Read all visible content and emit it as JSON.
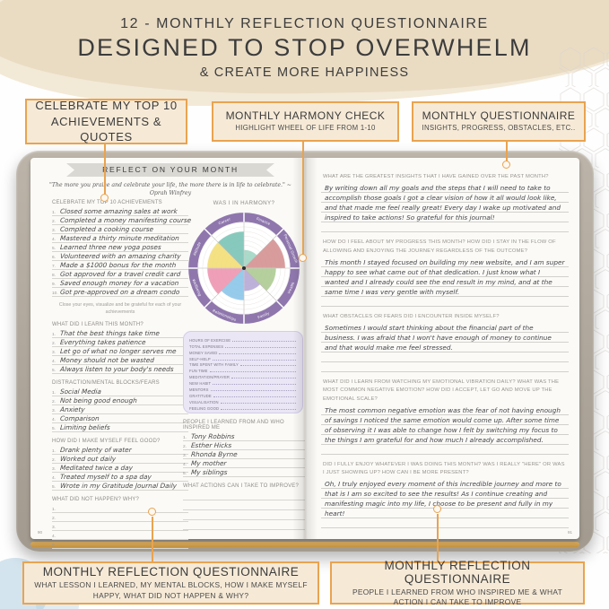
{
  "title": {
    "line1": "12 - MONTHLY REFLECTION QUESTIONNAIRE",
    "line2": "DESIGNED TO STOP OVERWHELM",
    "line3": "& CREATE MORE HAPPINESS"
  },
  "colors": {
    "accent_orange": "#E9A350",
    "callout_bg": "#F6EAD7",
    "wheel_ring_purple": "#8F77AD",
    "stats_box_lavender": "#EAE6F5"
  },
  "callouts": {
    "top_left": {
      "label": "CELEBRATE MY TOP 10 ACHIEVEMENTS & QUOTES"
    },
    "top_middle": {
      "title": "MONTHLY HARMONY CHECK",
      "subtitle": "HIGHLIGHT WHEEL OF LIFE FROM 1-10"
    },
    "top_right": {
      "title": "MONTHLY QUESTIONNAIRE",
      "subtitle": "INSIGHTS, PROGRESS, OBSTACLES, ETC.."
    },
    "bottom_left": {
      "title": "MONTHLY REFLECTION QUESTIONNAIRE",
      "subtitle": "WHAT LESSON I LEARNED, MY MENTAL BLOCKS, HOW I MAKE MYSELF HAPPY, WHAT DID NOT HAPPEN & WHY?"
    },
    "bottom_right": {
      "title": "MONTHLY REFLECTION QUESTIONNAIRE",
      "subtitle": "PEOPLE I LEARNED FROM WHO INSPIRED ME & WHAT ACTION I CAN TAKE TO IMPROVE"
    }
  },
  "left_page": {
    "banner": "REFLECT ON YOUR MONTH",
    "quote": "\"The more you praise and celebrate your life, the more there is in life to celebrate.\" ~ Oprah Winfrey",
    "achievements": {
      "heading": "CELEBRATE MY TOP 10 ACHIEVEMENTS",
      "items": [
        "Closed some amazing sales at work",
        "Completed a money manifesting course",
        "Completed a cooking course",
        "Mastered a thirty minute meditation",
        "Learned three new yoga poses",
        "Volunteered with an amazing charity",
        "Made a $1000 bonus for the month",
        "Got approved for a travel credit card",
        "Saved enough money for a vacation",
        "Got pre-approved on a dream condo"
      ],
      "note": "Close your eyes, visualize and be grateful for each of your achievements"
    },
    "learn": {
      "heading": "WHAT DID I LEARN THIS MONTH?",
      "items": [
        "That the best things take time",
        "Everything takes patience",
        "Let go of what no longer serves me",
        "Money should not be wasted",
        "Always listen to your body's needs"
      ]
    },
    "blocks": {
      "heading": "DISTRACTION/MENTAL BLOCKS/FEARS",
      "items": [
        "Social Media",
        "Not being good enough",
        "Anxiety",
        "Comparison",
        "Limiting beliefs"
      ]
    },
    "feel_good": {
      "heading": "HOW DID I MAKE MYSELF FEEL GOOD?",
      "items": [
        "Drank plenty of water",
        "Worked out daily",
        "Meditated twice a day",
        "Treated myself to a spa day",
        "Wrote in my Gratitude Journal Daily"
      ]
    },
    "not_happen": {
      "heading": "WHAT DID NOT HAPPEN? WHY?",
      "items": [
        "",
        "",
        "",
        "",
        ""
      ]
    },
    "wheel": {
      "title": "WAS I IN HARMONY?",
      "scale": "1-10",
      "ring_color": "#8F77AD",
      "segments": [
        {
          "label": "Finance",
          "color": "#9bd4c0",
          "score": 4
        },
        {
          "label": "Personal Growth",
          "color": "#d28b8b",
          "score": 9
        },
        {
          "label": "Health",
          "color": "#a8c88c",
          "score": 7
        },
        {
          "label": "Family",
          "color": "#b2a3d3",
          "score": 5
        },
        {
          "label": "Relationships",
          "color": "#84c2e8",
          "score": 7
        },
        {
          "label": "Wellbeing",
          "color": "#ec8fab",
          "score": 8
        },
        {
          "label": "Attitude",
          "color": "#f1dc6d",
          "score": 8
        },
        {
          "label": "Career",
          "color": "#72c1b1",
          "score": 8
        }
      ]
    },
    "stats_box": {
      "rows": [
        "HOURS OF EXERCISE",
        "TOTAL EXPENSES",
        "MONEY SAVED",
        "SELF-HELP",
        "TIME SPENT WITH FAMILY",
        "FUN TIME",
        "MEDITATION/PRAYER",
        "NEW HABIT",
        "MENTORS",
        "GRATITUDE",
        "VISUALISATION",
        "FEELING GOOD"
      ]
    },
    "people": {
      "heading": "PEOPLE I LEARNED FROM AND WHO INSPIRED ME",
      "items": [
        "Tony Robbins",
        "Esther Hicks",
        "Rhonda Byrne",
        "My mother",
        "My siblings"
      ]
    },
    "actions": {
      "heading": "WHAT ACTIONS CAN I TAKE TO IMPROVE?",
      "blank_lines": [
        "",
        "",
        "",
        ""
      ]
    },
    "page_number": "90"
  },
  "right_page": {
    "questions": [
      {
        "q": "WHAT ARE THE GREATEST INSIGHTS THAT I HAVE GAINED OVER THE PAST MONTH?",
        "a": "By writing down all my goals and the steps that I will need to take to accomplish those goals I got a clear vision of how it all would look like, and that made me feel really great! Every day I wake up motivated and inspired to take actions! So grateful for this journal!",
        "lines": 5
      },
      {
        "q": "HOW DO I FEEL ABOUT MY PROGRESS THIS MONTH? HOW DID I STAY IN THE FLOW OF ALLOWING AND ENJOYING THE JOURNEY REGARDLESS OF THE OUTCOME?",
        "a": "This month I stayed focused on building my new website, and I am super happy to see what came out of that dedication. I just know what I wanted and I already could see the end result in my mind, and at the same time I was very gentle with myself.",
        "lines": 5
      },
      {
        "q": "WHAT OBSTACLES OR FEARS DID I ENCOUNTER INSIDE MYSELF?",
        "a": "Sometimes I would start thinking about the financial part of the business. I was afraid that I won't have enough of money to continue and that would make me feel stressed.",
        "lines": 5
      },
      {
        "q": "WHAT DID I LEARN FROM WATCHING MY EMOTIONAL VIBRATION DAILY? WHAT WAS THE MOST COMMON NEGATIVE EMOTION? HOW DID I ACCEPT, LET GO AND MOVE UP THE EMOTIONAL SCALE?",
        "a": "The most common negative emotion was the fear of not having enough of savings I noticed the same emotion would come up. After some time of observing it I was able to change how I felt by switching my focus to the things I am grateful for and how much I already accomplished.",
        "lines": 5
      },
      {
        "q": "DID I FULLY ENJOY WHATEVER I WAS DOING THIS MONTH? WAS I REALLY \"HERE\" OR WAS I JUST SHOWING UP? HOW CAN I BE MORE PRESENT?",
        "a": "Oh, I truly enjoyed every moment of this incredible journey and more to that is I am so excited to see the results! As I continue creating and manifesting magic into my life, I choose to be present and fully in my heart!",
        "lines": 5
      }
    ],
    "page_number": "91"
  }
}
